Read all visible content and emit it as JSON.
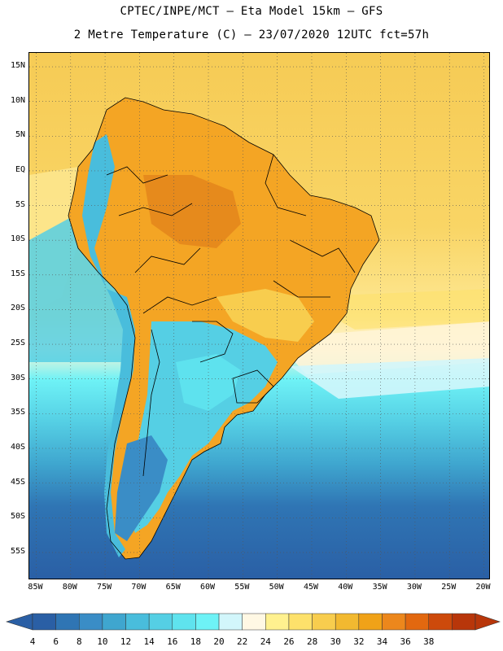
{
  "header": {
    "line1": "CPTEC/INPE/MCT –  Eta Model 15km – GFS",
    "line2": "2 Metre Temperature (C) – 23/07/2020 12UTC fct=57h"
  },
  "map": {
    "region": "South America",
    "lon_range": [
      -86,
      -19
    ],
    "lat_range": [
      -59,
      17
    ],
    "lat_ticks": [
      "15N",
      "10N",
      "5N",
      "EQ",
      "5S",
      "10S",
      "15S",
      "20S",
      "25S",
      "30S",
      "35S",
      "40S",
      "45S",
      "50S",
      "55S"
    ],
    "lat_values": [
      15,
      10,
      5,
      0,
      -5,
      -10,
      -15,
      -20,
      -25,
      -30,
      -35,
      -40,
      -45,
      -50,
      -55
    ],
    "lon_ticks": [
      "85W",
      "80W",
      "75W",
      "70W",
      "65W",
      "60W",
      "55W",
      "50W",
      "45W",
      "40W",
      "35W",
      "30W",
      "25W",
      "20W"
    ],
    "lon_values": [
      -85,
      -80,
      -75,
      -70,
      -65,
      -60,
      -55,
      -50,
      -45,
      -40,
      -35,
      -30,
      -25,
      -20
    ]
  },
  "legend": {
    "labels": [
      "4",
      "6",
      "8",
      "10",
      "12",
      "14",
      "16",
      "18",
      "20",
      "22",
      "24",
      "26",
      "28",
      "30",
      "32",
      "34",
      "36",
      "38"
    ],
    "colors": [
      "#2a5fa5",
      "#2f75b4",
      "#3a8dc6",
      "#3fa6cf",
      "#49bddc",
      "#55cfe4",
      "#5fe3ee",
      "#6ef2f6",
      "#d2f6fb",
      "#fff8e4",
      "#fff18f",
      "#fde16b",
      "#f8cd4e",
      "#f2b930",
      "#f0a218",
      "#ec871c",
      "#e2680f",
      "#cd4a0b",
      "#b8360a"
    ]
  }
}
